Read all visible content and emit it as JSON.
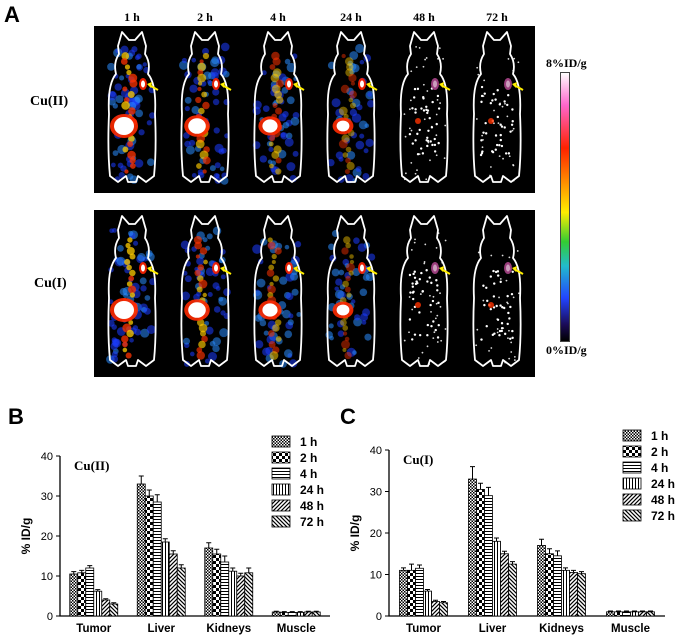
{
  "panel_a": {
    "letter": "A",
    "time_points": [
      "1 h",
      "2 h",
      "4 h",
      "24 h",
      "48 h",
      "72 h"
    ],
    "rows": [
      {
        "label": "Cu(II)",
        "key": "cu2"
      },
      {
        "label": "Cu(I)",
        "key": "cu1"
      }
    ],
    "colorbar": {
      "max_label": "8%ID/g",
      "min_label": "0%ID/g"
    },
    "colors": {
      "hot": "#ffffff",
      "mid": "#ff2200",
      "low": "#2244ff",
      "arrow": "#ffee00",
      "outline": "#ffffff"
    }
  },
  "chart_data": [
    {
      "type": "bar",
      "letter": "B",
      "title": "Cu(II)",
      "ylabel": "% ID/g",
      "xlabel": "",
      "ylim": [
        0,
        40
      ],
      "yticks": [
        0,
        10,
        20,
        30,
        40
      ],
      "categories": [
        "Tumor",
        "Liver",
        "Kidneys",
        "Muscle"
      ],
      "series": [
        {
          "name": "1 h",
          "values": [
            10.5,
            33,
            17,
            1.0
          ],
          "errors": [
            0.6,
            2.0,
            1.3,
            0.2
          ]
        },
        {
          "name": "2 h",
          "values": [
            10.8,
            30,
            15.5,
            0.9
          ],
          "errors": [
            0.6,
            1.5,
            1.2,
            0.2
          ]
        },
        {
          "name": "4 h",
          "values": [
            12,
            28.5,
            13.5,
            0.9
          ],
          "errors": [
            0.6,
            1.8,
            1.5,
            0.2
          ]
        },
        {
          "name": "24 h",
          "values": [
            6.2,
            18.5,
            11.2,
            0.9
          ],
          "errors": [
            0.4,
            0.8,
            0.8,
            0.2
          ]
        },
        {
          "name": "48 h",
          "values": [
            4.0,
            15.5,
            10,
            1.0
          ],
          "errors": [
            0.3,
            0.8,
            0.7,
            0.2
          ]
        },
        {
          "name": "72 h",
          "values": [
            3.0,
            12,
            10.8,
            1.0
          ],
          "errors": [
            0.3,
            0.8,
            1.2,
            0.2
          ]
        }
      ]
    },
    {
      "type": "bar",
      "letter": "C",
      "title": "Cu(I)",
      "ylabel": "% ID/g",
      "xlabel": "",
      "ylim": [
        0,
        40
      ],
      "yticks": [
        0,
        10,
        20,
        30,
        40
      ],
      "categories": [
        "Tumor",
        "Liver",
        "Kidneys",
        "Muscle"
      ],
      "series": [
        {
          "name": "1 h",
          "values": [
            11,
            33,
            17,
            1.0
          ],
          "errors": [
            0.6,
            3.0,
            1.5,
            0.2
          ]
        },
        {
          "name": "2 h",
          "values": [
            11,
            30.5,
            15,
            1.0
          ],
          "errors": [
            1.5,
            1.5,
            1.2,
            0.2
          ]
        },
        {
          "name": "4 h",
          "values": [
            11.5,
            29,
            14.5,
            1.0
          ],
          "errors": [
            0.8,
            2.0,
            1.2,
            0.2
          ]
        },
        {
          "name": "24 h",
          "values": [
            6,
            18,
            11,
            1.0
          ],
          "errors": [
            0.4,
            0.8,
            0.6,
            0.2
          ]
        },
        {
          "name": "48 h",
          "values": [
            3.5,
            15,
            10.5,
            1.0
          ],
          "errors": [
            0.3,
            0.6,
            0.5,
            0.2
          ]
        },
        {
          "name": "72 h",
          "values": [
            3.2,
            12.5,
            10.2,
            1.0
          ],
          "errors": [
            0.3,
            0.6,
            0.5,
            0.2
          ]
        }
      ]
    }
  ]
}
